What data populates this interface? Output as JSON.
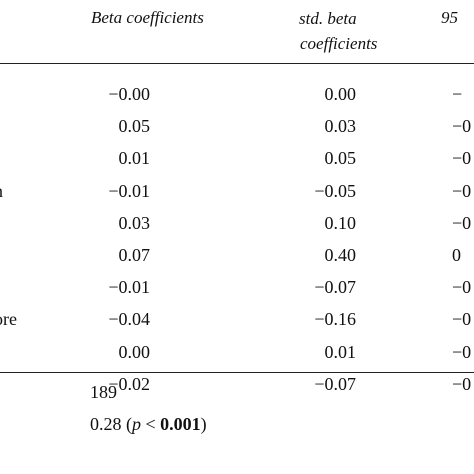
{
  "header": {
    "beta": "Beta coefficients",
    "std_line1": "std. beta",
    "std_line2": "coefficients",
    "ci": "95"
  },
  "rows": [
    {
      "label": "",
      "beta": "−0.00",
      "std": "0.00",
      "ci": "−"
    },
    {
      "label": "",
      "beta": "0.05",
      "std": "0.03",
      "ci": "−0"
    },
    {
      "label": "",
      "beta": "0.01",
      "std": "0.05",
      "ci": "−0"
    },
    {
      "label": "n",
      "beta": "−0.01",
      "std": "−0.05",
      "ci": "−0"
    },
    {
      "label": "",
      "beta": "0.03",
      "std": "0.10",
      "ci": "−0"
    },
    {
      "label": "",
      "beta": "0.07",
      "std": "0.40",
      "ci": "0"
    },
    {
      "label": "",
      "beta": "−0.01",
      "std": "−0.07",
      "ci": "−0"
    },
    {
      "label": "ore",
      "beta": "−0.04",
      "std": "−0.16",
      "ci": "−0"
    },
    {
      "label": "",
      "beta": "0.00",
      "std": "0.01",
      "ci": "−0"
    },
    {
      "label": "",
      "beta": "−0.02",
      "std": "−0.07",
      "ci": "−0"
    }
  ],
  "footer": {
    "n": "189",
    "r2_value": "0.28 (",
    "p_symbol": "p",
    "lt": " < ",
    "p_value": "0.001",
    "close": ")"
  }
}
